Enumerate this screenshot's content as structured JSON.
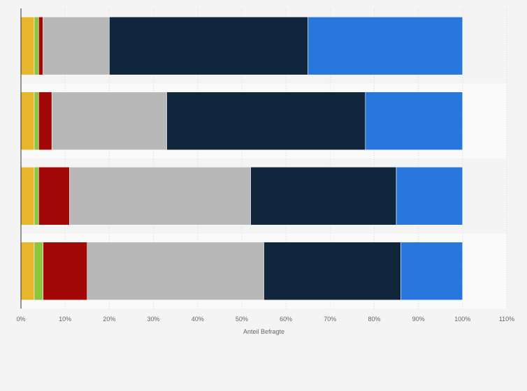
{
  "chart_data": {
    "type": "bar",
    "orientation": "horizontal",
    "stacked": true,
    "title": "",
    "xlabel": "Anteil Befragte",
    "ylabel": "",
    "xlim": [
      0,
      110
    ],
    "x_ticks": [
      0,
      10,
      20,
      30,
      40,
      50,
      60,
      70,
      80,
      90,
      100,
      110
    ],
    "x_tick_suffix": "%",
    "grid": true,
    "legend": "none",
    "categories": [
      "",
      "",
      "",
      ""
    ],
    "series": [
      {
        "color": "#e8b62c",
        "values": [
          3,
          3,
          3,
          3
        ]
      },
      {
        "color": "#8cc63f",
        "values": [
          1,
          1,
          1,
          2
        ]
      },
      {
        "color": "#a30808",
        "values": [
          1,
          3,
          7,
          10
        ]
      },
      {
        "color": "#b8b8b8",
        "values": [
          15,
          26,
          41,
          40
        ]
      },
      {
        "color": "#0f263d",
        "values": [
          45,
          45,
          33,
          31
        ]
      },
      {
        "color": "#2877dc",
        "values": [
          35,
          22,
          15,
          14
        ]
      }
    ]
  }
}
